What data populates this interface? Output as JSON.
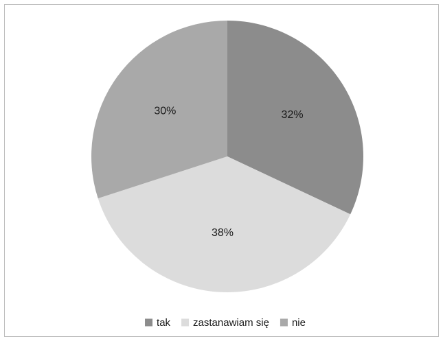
{
  "chart_data": {
    "type": "pie",
    "categories": [
      "tak",
      "zastanawiam się",
      "nie"
    ],
    "values": [
      32,
      38,
      30
    ],
    "data_labels": [
      "32%",
      "38%",
      "30%"
    ],
    "colors": [
      "#8c8c8c",
      "#dcdcdc",
      "#a9a9a9"
    ],
    "start_angle_deg": 0,
    "direction": "clockwise",
    "legend": "bottom"
  }
}
